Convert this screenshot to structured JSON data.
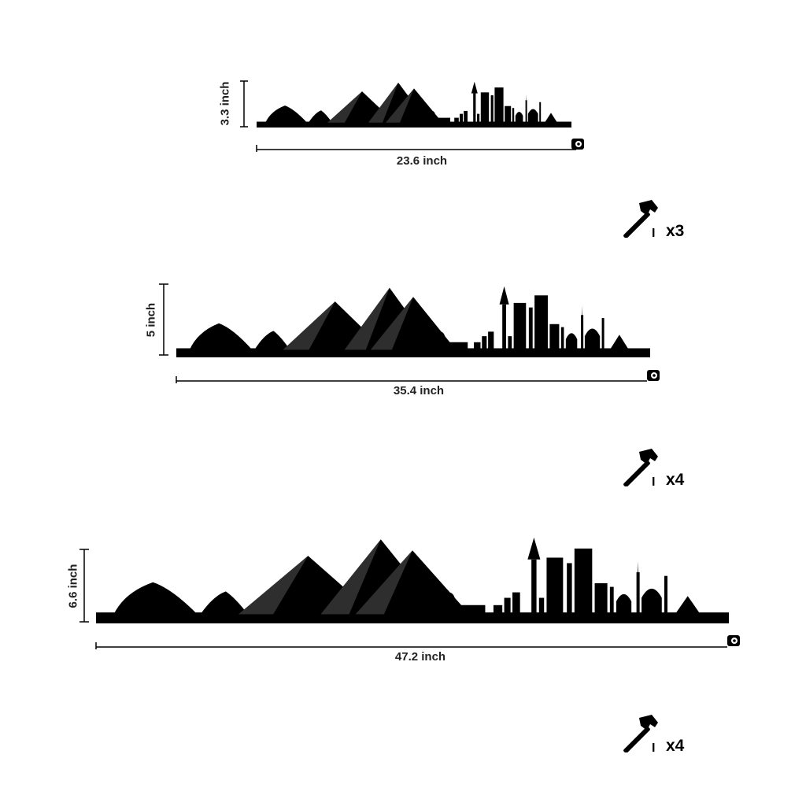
{
  "variants": [
    {
      "height_label": "3.3 inch",
      "width_label": "23.6 inch",
      "nail_count": "x3"
    },
    {
      "height_label": "5 inch",
      "width_label": "35.4 inch",
      "nail_count": "x4"
    },
    {
      "height_label": "6.6 inch",
      "width_label": "47.2 inch",
      "nail_count": "x4"
    }
  ],
  "icons": {
    "hammer": "hammer-icon",
    "nail": "nail-icon",
    "tape": "tape-measure-icon"
  },
  "colors": {
    "silhouette": "#000000",
    "background": "#ffffff"
  }
}
